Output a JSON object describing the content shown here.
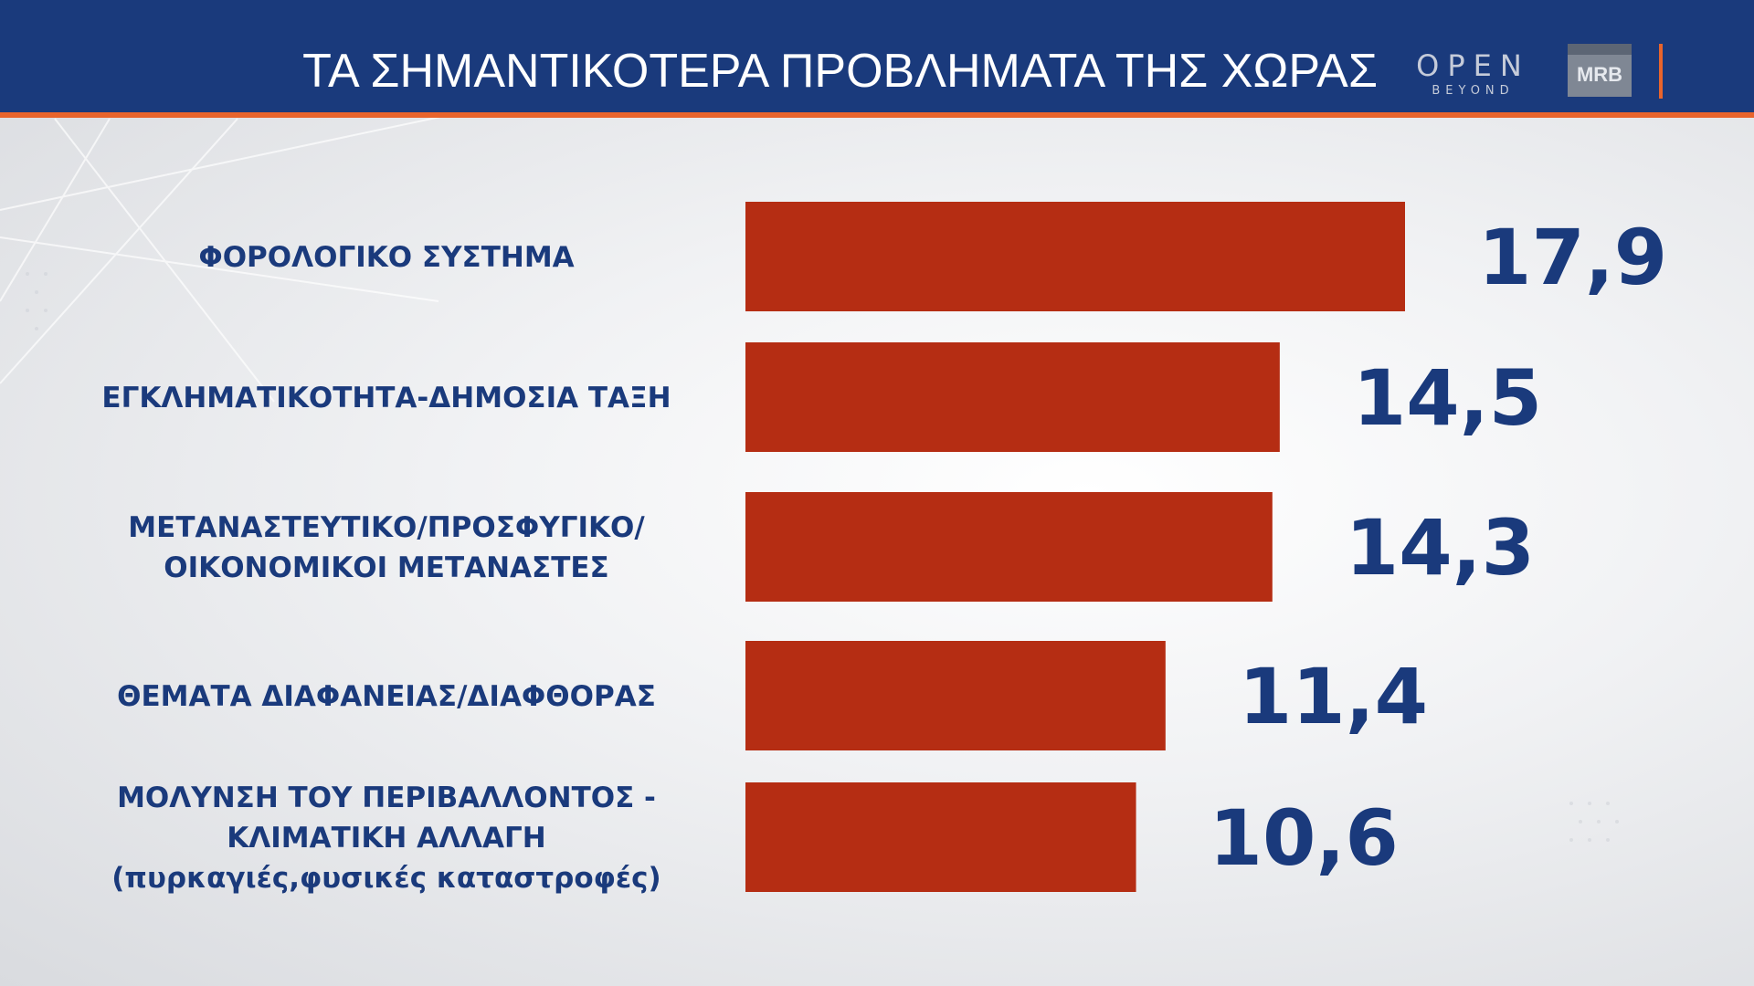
{
  "header": {
    "title": "ΤΑ ΣΗΜΑΝΤΙΚΟΤΕΡΑ ΠΡΟΒΛΗΜΑΤΑ ΤΗΣ ΧΩΡΑΣ",
    "logo_open": "OPEN",
    "logo_beyond": "BEYOND",
    "logo_mrb": "MRB"
  },
  "colors": {
    "header_bg": "#1a3a7c",
    "accent": "#e8642c",
    "bar": "#b52d13",
    "text": "#1a3a7c"
  },
  "chart_data": {
    "type": "bar",
    "orientation": "horizontal",
    "categories": [
      [
        "ΦΟΡΟΛΟΓΙΚΟ ΣΥΣΤΗΜΑ"
      ],
      [
        "ΕΓΚΛΗΜΑΤΙΚΟΤΗΤΑ-ΔΗΜΟΣΙΑ ΤΑΞΗ"
      ],
      [
        "ΜΕΤΑΝΑΣΤΕΥΤΙΚΟ/ΠΡΟΣΦΥΓΙΚΟ/",
        "ΟΙΚΟΝΟΜΙΚΟΙ ΜΕΤΑΝΑΣΤΕΣ"
      ],
      [
        "ΘΕΜΑΤΑ ΔΙΑΦΑΝΕΙΑΣ/ΔΙΑΦΘΟΡΑΣ"
      ],
      [
        "ΜΟΛΥΝΣΗ ΤΟΥ ΠΕΡΙΒΑΛΛΟΝΤΟΣ -",
        "ΚΛΙΜΑΤΙΚΗ ΑΛΛΑΓΗ",
        "(πυρκαγιές,φυσικές καταστροφές)"
      ]
    ],
    "values": [
      17.9,
      14.5,
      14.3,
      11.4,
      10.6
    ],
    "value_labels": [
      "17,9",
      "14,5",
      "14,3",
      "11,4",
      "10,6"
    ],
    "xlim": [
      0,
      17.9
    ],
    "grid": false,
    "legend": "none"
  }
}
